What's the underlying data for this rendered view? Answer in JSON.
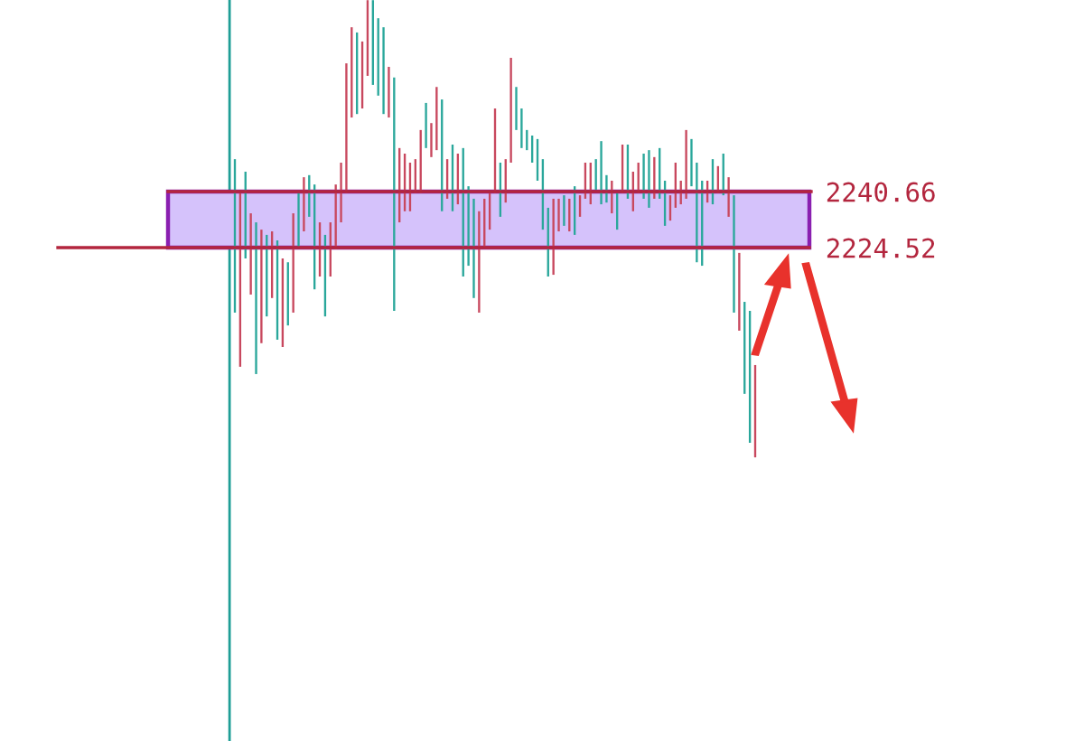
{
  "chart_data": {
    "type": "candlestick",
    "categories": [
      null,
      null,
      null,
      null,
      null,
      null,
      null,
      null,
      null,
      null,
      null,
      null,
      null,
      null,
      null,
      null,
      null,
      null,
      null,
      null,
      null,
      null,
      null,
      null,
      null,
      null,
      null,
      null,
      null,
      null,
      null,
      null,
      null,
      null,
      null,
      null,
      null,
      null,
      null,
      null,
      null,
      null,
      null,
      null,
      null,
      null,
      null,
      null,
      null,
      null,
      null,
      null,
      null,
      null,
      null,
      null,
      null,
      null,
      null,
      null,
      null,
      null,
      null,
      null,
      null,
      null,
      null,
      null,
      null,
      null,
      null,
      null,
      null,
      null,
      null,
      null,
      null,
      null,
      null,
      null,
      null,
      null,
      null,
      null,
      null,
      null,
      null,
      null,
      null,
      null,
      null,
      null,
      null,
      null,
      null,
      null,
      null,
      null,
      null
    ],
    "ohlc": [
      [
        2250.0,
        2250.0,
        2205.8,
        2205.8
      ],
      [
        2190.2,
        2240.2,
        2190.2,
        2240.2
      ],
      [
        2246.4,
        2246.4,
        2221.4,
        2221.4
      ],
      [
        2211.0,
        2234.4,
        2211.0,
        2234.4
      ],
      [
        2231.8,
        2231.8,
        2188.1,
        2188.1
      ],
      [
        2197.0,
        2229.7,
        2197.0,
        2229.7
      ],
      [
        2228.2,
        2228.2,
        2204.7,
        2204.7
      ],
      [
        2210.0,
        2229.2,
        2210.0,
        2229.2
      ],
      [
        2226.6,
        2226.6,
        2198.0,
        2198.0
      ],
      [
        2195.9,
        2221.4,
        2195.9,
        2221.4
      ],
      [
        2220.3,
        2220.3,
        2202.1,
        2202.1
      ],
      [
        2205.8,
        2234.4,
        2205.8,
        2234.4
      ],
      [
        2240.2,
        2240.2,
        2224.5,
        2224.5
      ],
      [
        2229.2,
        2244.8,
        2229.2,
        2244.8
      ],
      [
        2245.4,
        2245.4,
        2233.4,
        2233.4
      ],
      [
        2242.7,
        2242.7,
        2212.5,
        2212.5
      ],
      [
        2216.2,
        2231.8,
        2216.2,
        2231.8
      ],
      [
        2228.2,
        2228.2,
        2204.7,
        2204.7
      ],
      [
        2216.2,
        2231.8,
        2216.2,
        2231.8
      ],
      [
        2224.0,
        2242.7,
        2224.0,
        2242.7
      ],
      [
        2231.8,
        2249.0,
        2231.8,
        2249.0
      ],
      [
        2240.2,
        2277.6,
        2240.2,
        2277.6
      ],
      [
        2262.0,
        2288.0,
        2262.0,
        2288.0
      ],
      [
        2286.5,
        2286.5,
        2263.0,
        2263.0
      ],
      [
        2264.6,
        2283.9,
        2264.6,
        2283.9
      ],
      [
        2274.0,
        2295.8,
        2274.0,
        2295.8
      ],
      [
        2295.8,
        2295.8,
        2271.4,
        2271.4
      ],
      [
        2290.6,
        2290.6,
        2268.3,
        2268.3
      ],
      [
        2288.0,
        2288.0,
        2263.0,
        2263.0
      ],
      [
        2262.0,
        2276.6,
        2262.0,
        2276.6
      ],
      [
        2273.5,
        2273.5,
        2206.3,
        2206.3
      ],
      [
        2231.8,
        2253.2,
        2231.8,
        2253.2
      ],
      [
        2235.0,
        2251.6,
        2235.0,
        2251.6
      ],
      [
        2235.0,
        2249.0,
        2235.0,
        2249.0
      ],
      [
        2240.2,
        2250.0,
        2240.2,
        2250.0
      ],
      [
        2240.2,
        2258.4,
        2240.2,
        2258.4
      ],
      [
        2266.2,
        2266.2,
        2253.2,
        2253.2
      ],
      [
        2250.6,
        2260.4,
        2250.6,
        2260.4
      ],
      [
        2252.6,
        2270.8,
        2252.6,
        2270.8
      ],
      [
        2267.2,
        2267.2,
        2235.0,
        2235.0
      ],
      [
        2238.6,
        2250.0,
        2238.6,
        2250.0
      ],
      [
        2254.2,
        2254.2,
        2235.0,
        2235.0
      ],
      [
        2237.0,
        2251.6,
        2237.0,
        2251.6
      ],
      [
        2253.2,
        2253.2,
        2216.2,
        2216.2
      ],
      [
        2242.2,
        2242.2,
        2219.3,
        2219.3
      ],
      [
        2238.6,
        2238.6,
        2210.0,
        2210.0
      ],
      [
        2205.8,
        2235.0,
        2205.8,
        2235.0
      ],
      [
        2224.5,
        2238.6,
        2224.5,
        2238.6
      ],
      [
        2229.7,
        2240.2,
        2229.7,
        2240.2
      ],
      [
        2240.2,
        2264.6,
        2240.2,
        2264.6
      ],
      [
        2249.0,
        2249.0,
        2233.4,
        2233.4
      ],
      [
        2237.5,
        2250.0,
        2237.5,
        2250.0
      ],
      [
        2249.0,
        2279.2,
        2249.0,
        2279.2
      ],
      [
        2270.8,
        2270.8,
        2258.4,
        2258.4
      ],
      [
        2264.6,
        2264.6,
        2253.2,
        2253.2
      ],
      [
        2258.4,
        2258.4,
        2252.6,
        2252.6
      ],
      [
        2256.8,
        2256.8,
        2249.0,
        2249.0
      ],
      [
        2255.8,
        2255.8,
        2243.8,
        2243.8
      ],
      [
        2250.0,
        2250.0,
        2229.7,
        2229.7
      ],
      [
        2236.0,
        2236.0,
        2216.2,
        2216.2
      ],
      [
        2216.7,
        2238.6,
        2216.7,
        2238.6
      ],
      [
        2229.2,
        2238.6,
        2229.2,
        2238.6
      ],
      [
        2239.6,
        2239.6,
        2230.8,
        2230.8
      ],
      [
        2229.2,
        2238.6,
        2229.2,
        2238.6
      ],
      [
        2242.2,
        2242.2,
        2228.2,
        2228.2
      ],
      [
        2233.4,
        2239.6,
        2233.4,
        2239.6
      ],
      [
        2238.6,
        2249.0,
        2238.6,
        2249.0
      ],
      [
        2237.0,
        2249.0,
        2237.0,
        2249.0
      ],
      [
        2250.0,
        2250.0,
        2241.2,
        2241.2
      ],
      [
        2255.2,
        2255.2,
        2237.0,
        2237.0
      ],
      [
        2245.4,
        2245.4,
        2237.5,
        2237.5
      ],
      [
        2234.4,
        2243.8,
        2234.4,
        2243.8
      ],
      [
        2240.2,
        2240.2,
        2229.7,
        2229.7
      ],
      [
        2240.2,
        2254.2,
        2240.2,
        2254.2
      ],
      [
        2254.2,
        2254.2,
        2238.6,
        2238.6
      ],
      [
        2235.0,
        2246.4,
        2235.0,
        2246.4
      ],
      [
        2240.2,
        2249.0,
        2240.2,
        2249.0
      ],
      [
        2251.6,
        2251.6,
        2238.6,
        2238.6
      ],
      [
        2252.6,
        2252.6,
        2236.0,
        2236.0
      ],
      [
        2238.6,
        2250.6,
        2238.6,
        2250.6
      ],
      [
        2253.2,
        2253.2,
        2238.6,
        2238.6
      ],
      [
        2243.8,
        2243.8,
        2230.8,
        2230.8
      ],
      [
        2232.3,
        2239.6,
        2232.3,
        2239.6
      ],
      [
        2236.0,
        2249.0,
        2236.0,
        2249.0
      ],
      [
        2237.0,
        2243.8,
        2237.0,
        2243.8
      ],
      [
        2238.6,
        2258.4,
        2238.6,
        2258.4
      ],
      [
        2255.8,
        2255.8,
        2242.2,
        2242.2
      ],
      [
        2249.0,
        2249.0,
        2220.3,
        2220.3
      ],
      [
        2243.8,
        2243.8,
        2219.3,
        2219.3
      ],
      [
        2237.5,
        2243.8,
        2237.5,
        2243.8
      ],
      [
        2250.0,
        2250.0,
        2237.0,
        2237.0
      ],
      [
        2240.2,
        2248.0,
        2240.2,
        2248.0
      ],
      [
        2251.6,
        2251.6,
        2239.6,
        2239.6
      ],
      [
        2233.4,
        2244.8,
        2233.4,
        2244.8
      ],
      [
        2239.6,
        2239.6,
        2205.8,
        2205.8
      ],
      [
        2200.6,
        2223.0,
        2200.6,
        2223.0
      ],
      [
        2208.9,
        2208.9,
        2182.4,
        2182.4
      ],
      [
        2206.3,
        2206.3,
        2168.3,
        2168.3
      ],
      [
        2164.1,
        2190.7,
        2164.1,
        2190.7
      ]
    ],
    "colors": [
      "#2aa79b",
      "#c8485e",
      "#2aa79b",
      "#c8485e",
      "#2aa79b",
      "#c8485e",
      "#2aa79b",
      "#c8485e",
      "#2aa79b",
      "#c8485e",
      "#2aa79b",
      "#c8485e",
      "#2aa79b",
      "#c8485e",
      "#2aa79b",
      "#2aa79b",
      "#c8485e",
      "#2aa79b",
      "#c8485e",
      "#c8485e",
      "#c8485e",
      "#c8485e",
      "#c8485e",
      "#2aa79b",
      "#c8485e",
      "#c8485e",
      "#2aa79b",
      "#2aa79b",
      "#2aa79b",
      "#c8485e",
      "#2aa79b",
      "#c8485e",
      "#c8485e",
      "#c8485e",
      "#c8485e",
      "#c8485e",
      "#2aa79b",
      "#c8485e",
      "#c8485e",
      "#2aa79b",
      "#c8485e",
      "#2aa79b",
      "#c8485e",
      "#2aa79b",
      "#2aa79b",
      "#2aa79b",
      "#c8485e",
      "#c8485e",
      "#c8485e",
      "#c8485e",
      "#2aa79b",
      "#c8485e",
      "#c8485e",
      "#2aa79b",
      "#2aa79b",
      "#2aa79b",
      "#2aa79b",
      "#2aa79b",
      "#2aa79b",
      "#2aa79b",
      "#c8485e",
      "#c8485e",
      "#2aa79b",
      "#c8485e",
      "#2aa79b",
      "#c8485e",
      "#c8485e",
      "#c8485e",
      "#2aa79b",
      "#2aa79b",
      "#2aa79b",
      "#c8485e",
      "#2aa79b",
      "#c8485e",
      "#2aa79b",
      "#c8485e",
      "#c8485e",
      "#2aa79b",
      "#2aa79b",
      "#c8485e",
      "#2aa79b",
      "#2aa79b",
      "#c8485e",
      "#c8485e",
      "#c8485e",
      "#c8485e",
      "#2aa79b",
      "#2aa79b",
      "#2aa79b",
      "#c8485e",
      "#2aa79b",
      "#c8485e",
      "#2aa79b",
      "#c8485e",
      "#2aa79b",
      "#c8485e",
      "#2aa79b",
      "#2aa79b",
      "#c8485e"
    ],
    "ylim": [
      2082.4,
      2295.85
    ],
    "yticks": [
      2224.52,
      2240.66
    ],
    "tick_labels": "y",
    "grid": false,
    "bands": [
      {
        "axis": "y",
        "from": 2224.52,
        "to": 2240.66,
        "color": "#d5c2fb"
      }
    ],
    "ref_lines": [
      {
        "axis": "y",
        "value": 2240.66,
        "color": "#b3263e"
      },
      {
        "axis": "y",
        "value": 2224.52,
        "color": "#b3263e"
      }
    ]
  }
}
